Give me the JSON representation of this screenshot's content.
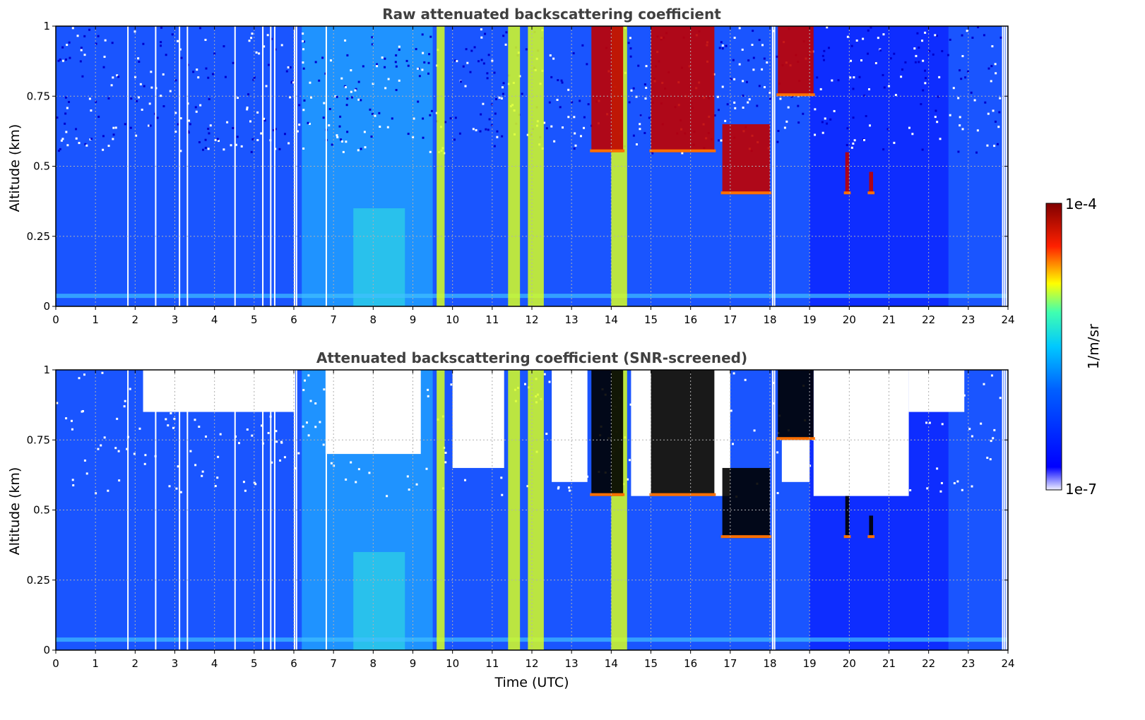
{
  "chart_data": [
    {
      "type": "heatmap",
      "title": "Raw attenuated backscattering coefficient",
      "xlabel": "",
      "ylabel": "Altitude (km)",
      "xlim": [
        0,
        24
      ],
      "ylim": [
        0,
        1
      ],
      "xticks": [
        "0",
        "1",
        "2",
        "3",
        "4",
        "5",
        "6",
        "7",
        "8",
        "9",
        "10",
        "11",
        "12",
        "13",
        "14",
        "15",
        "16",
        "17",
        "18",
        "19",
        "20",
        "21",
        "22",
        "23",
        "24"
      ],
      "yticks": [
        "0",
        "0.25",
        "0.5",
        "0.75",
        "1"
      ],
      "grid": true,
      "screened": false,
      "features": [
        {
          "x": [
            9.6,
            9.8
          ],
          "y": [
            0,
            1
          ],
          "level": "moderate"
        },
        {
          "x": [
            11.4,
            11.7
          ],
          "y": [
            0,
            1
          ],
          "level": "moderate"
        },
        {
          "x": [
            11.9,
            12.3
          ],
          "y": [
            0,
            1
          ],
          "level": "moderate"
        },
        {
          "x": [
            14.0,
            14.4
          ],
          "y": [
            0,
            1
          ],
          "level": "moderate"
        },
        {
          "x": [
            13.5,
            14.3
          ],
          "y": [
            0.55,
            1
          ],
          "level": "high"
        },
        {
          "x": [
            15.0,
            16.6
          ],
          "y": [
            0.55,
            1
          ],
          "level": "high"
        },
        {
          "x": [
            16.8,
            18.0
          ],
          "y": [
            0.4,
            0.65
          ],
          "level": "high"
        },
        {
          "x": [
            18.2,
            19.1
          ],
          "y": [
            0.75,
            1
          ],
          "level": "high"
        },
        {
          "x": [
            19.9,
            20.0
          ],
          "y": [
            0.4,
            0.55
          ],
          "level": "high"
        },
        {
          "x": [
            20.5,
            20.6
          ],
          "y": [
            0.4,
            0.48
          ],
          "level": "high"
        }
      ]
    },
    {
      "type": "heatmap",
      "title": "Attenuated backscattering coefficient (SNR-screened)",
      "xlabel": "Time (UTC)",
      "ylabel": "Altitude (km)",
      "xlim": [
        0,
        24
      ],
      "ylim": [
        0,
        1
      ],
      "xticks": [
        "0",
        "1",
        "2",
        "3",
        "4",
        "5",
        "6",
        "7",
        "8",
        "9",
        "10",
        "11",
        "12",
        "13",
        "14",
        "15",
        "16",
        "17",
        "18",
        "19",
        "20",
        "21",
        "22",
        "23",
        "24"
      ],
      "yticks": [
        "0",
        "0.25",
        "0.5",
        "0.75",
        "1"
      ],
      "grid": true,
      "screened": true,
      "features": [
        {
          "x": [
            9.6,
            9.8
          ],
          "y": [
            0,
            1
          ],
          "level": "moderate"
        },
        {
          "x": [
            11.4,
            11.7
          ],
          "y": [
            0,
            1
          ],
          "level": "moderate"
        },
        {
          "x": [
            11.9,
            12.3
          ],
          "y": [
            0,
            1
          ],
          "level": "moderate"
        },
        {
          "x": [
            14.0,
            14.4
          ],
          "y": [
            0,
            1
          ],
          "level": "moderate"
        },
        {
          "x": [
            13.5,
            14.3
          ],
          "y": [
            0.55,
            1
          ],
          "level": "saturated"
        },
        {
          "x": [
            15.0,
            16.6
          ],
          "y": [
            0.55,
            1
          ],
          "level": "saturated"
        },
        {
          "x": [
            16.8,
            18.0
          ],
          "y": [
            0.4,
            0.65
          ],
          "level": "saturated"
        },
        {
          "x": [
            18.2,
            19.1
          ],
          "y": [
            0.75,
            1
          ],
          "level": "saturated"
        },
        {
          "x": [
            19.9,
            20.0
          ],
          "y": [
            0.4,
            0.55
          ],
          "level": "saturated"
        },
        {
          "x": [
            20.5,
            20.6
          ],
          "y": [
            0.4,
            0.48
          ],
          "level": "saturated"
        }
      ]
    }
  ],
  "colorbar": {
    "label": "1/m/sr",
    "max_label": "1e-4",
    "min_label": "1e-7",
    "range": [
      1e-07,
      0.0001
    ],
    "scale": "log",
    "colormap": "jet",
    "colors": [
      "#f0f0ff",
      "#0000ff",
      "#00c8ff",
      "#ffff00",
      "#ff2000",
      "#800000"
    ]
  }
}
